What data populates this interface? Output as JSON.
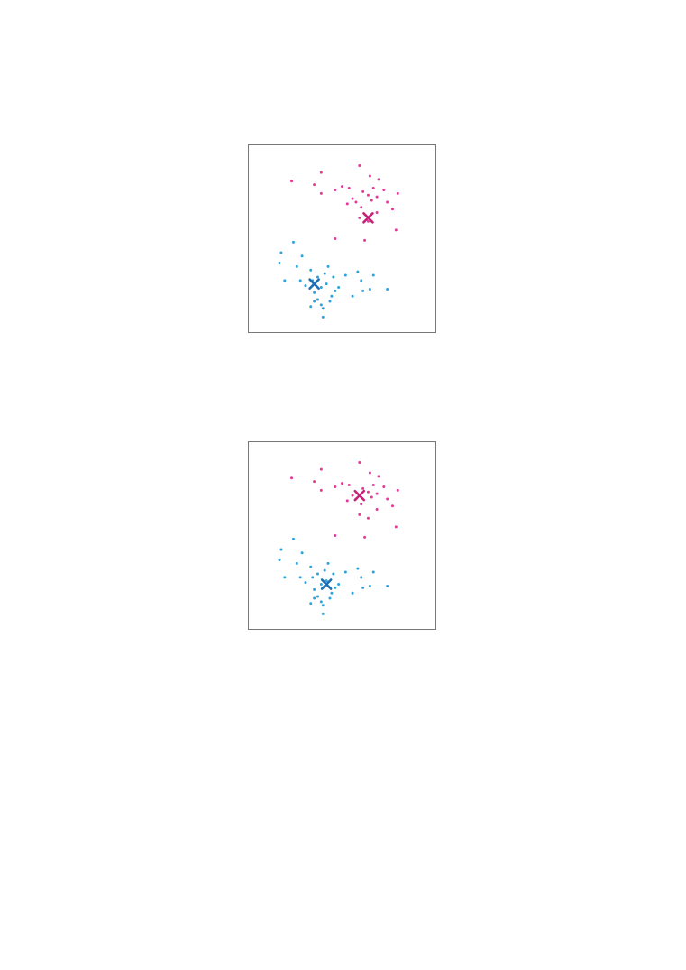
{
  "colors": {
    "cluster_a_points": "#e7389a",
    "cluster_b_points": "#2aa3df",
    "cluster_a_centroid": "#c71f79",
    "cluster_b_centroid": "#1f6fb4",
    "frame": "#777777"
  },
  "chart_data": [
    {
      "type": "scatter",
      "title": "",
      "xlabel": "",
      "ylabel": "",
      "xlim": [
        0,
        10
      ],
      "ylim": [
        0,
        10
      ],
      "grid": false,
      "series": [
        {
          "name": "cluster-a",
          "color_key": "cluster_a_points",
          "points": [
            [
              2.1,
              8.3
            ],
            [
              3.8,
              8.8
            ],
            [
              3.4,
              8.1
            ],
            [
              3.8,
              7.6
            ],
            [
              4.6,
              7.8
            ],
            [
              5.0,
              8.0
            ],
            [
              5.4,
              7.9
            ],
            [
              6.0,
              9.2
            ],
            [
              6.6,
              8.6
            ],
            [
              7.1,
              8.4
            ],
            [
              6.8,
              7.9
            ],
            [
              7.4,
              7.8
            ],
            [
              8.2,
              7.6
            ],
            [
              6.2,
              7.7
            ],
            [
              6.5,
              7.5
            ],
            [
              5.6,
              7.3
            ],
            [
              5.8,
              7.1
            ],
            [
              6.1,
              6.8
            ],
            [
              6.7,
              7.2
            ],
            [
              7.0,
              7.4
            ],
            [
              7.6,
              7.1
            ],
            [
              7.9,
              6.7
            ],
            [
              6.0,
              6.2
            ],
            [
              6.5,
              6.0
            ],
            [
              5.3,
              7.0
            ],
            [
              7.0,
              6.5
            ],
            [
              8.1,
              5.5
            ],
            [
              4.6,
              5.0
            ],
            [
              6.3,
              4.9
            ]
          ]
        },
        {
          "name": "cluster-b",
          "color_key": "cluster_b_points",
          "points": [
            [
              2.2,
              4.8
            ],
            [
              1.5,
              4.2
            ],
            [
              2.7,
              4.0
            ],
            [
              1.4,
              3.6
            ],
            [
              2.4,
              3.4
            ],
            [
              3.2,
              3.2
            ],
            [
              1.7,
              2.6
            ],
            [
              2.6,
              2.6
            ],
            [
              2.9,
              2.3
            ],
            [
              3.3,
              2.6
            ],
            [
              4.2,
              3.4
            ],
            [
              4.0,
              3.0
            ],
            [
              3.6,
              2.8
            ],
            [
              4.5,
              2.8
            ],
            [
              5.2,
              2.9
            ],
            [
              5.9,
              3.1
            ],
            [
              6.1,
              2.6
            ],
            [
              6.8,
              2.9
            ],
            [
              4.8,
              2.2
            ],
            [
              4.6,
              2.0
            ],
            [
              3.8,
              2.2
            ],
            [
              3.4,
              1.9
            ],
            [
              4.4,
              1.7
            ],
            [
              3.6,
              1.5
            ],
            [
              6.2,
              2.0
            ],
            [
              6.6,
              2.1
            ],
            [
              7.6,
              2.1
            ],
            [
              5.6,
              1.7
            ],
            [
              3.4,
              1.4
            ],
            [
              3.2,
              1.1
            ],
            [
              3.9,
              1.0
            ],
            [
              4.3,
              1.4
            ],
            [
              3.9,
              0.5
            ],
            [
              3.8,
              1.2
            ],
            [
              4.1,
              2.4
            ]
          ]
        }
      ],
      "centroids": [
        {
          "name": "centroid-a",
          "color_key": "cluster_a_centroid",
          "x": 6.5,
          "y": 6.2
        },
        {
          "name": "centroid-b",
          "color_key": "cluster_b_centroid",
          "x": 3.4,
          "y": 2.4
        }
      ]
    },
    {
      "type": "scatter",
      "title": "",
      "xlabel": "",
      "ylabel": "",
      "xlim": [
        0,
        10
      ],
      "ylim": [
        0,
        10
      ],
      "grid": false,
      "series": [
        {
          "name": "cluster-a",
          "color_key": "cluster_a_points",
          "points": [
            [
              2.1,
              8.3
            ],
            [
              3.8,
              8.8
            ],
            [
              3.4,
              8.1
            ],
            [
              3.8,
              7.6
            ],
            [
              4.6,
              7.8
            ],
            [
              5.0,
              8.0
            ],
            [
              5.4,
              7.9
            ],
            [
              6.0,
              9.2
            ],
            [
              6.6,
              8.6
            ],
            [
              7.1,
              8.4
            ],
            [
              6.8,
              7.9
            ],
            [
              7.4,
              7.8
            ],
            [
              8.2,
              7.6
            ],
            [
              6.2,
              7.7
            ],
            [
              6.5,
              7.5
            ],
            [
              5.6,
              7.3
            ],
            [
              5.8,
              7.1
            ],
            [
              6.1,
              6.8
            ],
            [
              6.7,
              7.2
            ],
            [
              7.0,
              7.4
            ],
            [
              7.6,
              7.1
            ],
            [
              7.9,
              6.7
            ],
            [
              6.0,
              6.2
            ],
            [
              6.5,
              6.0
            ],
            [
              5.3,
              7.0
            ],
            [
              7.0,
              6.5
            ],
            [
              8.1,
              5.5
            ],
            [
              4.6,
              5.0
            ],
            [
              6.3,
              4.9
            ]
          ]
        },
        {
          "name": "cluster-b",
          "color_key": "cluster_b_points",
          "points": [
            [
              2.2,
              4.8
            ],
            [
              1.5,
              4.2
            ],
            [
              2.7,
              4.0
            ],
            [
              1.4,
              3.6
            ],
            [
              2.4,
              3.4
            ],
            [
              3.2,
              3.2
            ],
            [
              1.7,
              2.6
            ],
            [
              2.6,
              2.6
            ],
            [
              2.9,
              2.3
            ],
            [
              3.3,
              2.6
            ],
            [
              4.2,
              3.4
            ],
            [
              4.0,
              3.0
            ],
            [
              3.6,
              2.8
            ],
            [
              4.5,
              2.8
            ],
            [
              5.2,
              2.9
            ],
            [
              5.9,
              3.1
            ],
            [
              6.1,
              2.6
            ],
            [
              6.8,
              2.9
            ],
            [
              4.8,
              2.2
            ],
            [
              4.6,
              2.0
            ],
            [
              3.8,
              2.2
            ],
            [
              3.4,
              1.9
            ],
            [
              4.4,
              1.7
            ],
            [
              3.6,
              1.5
            ],
            [
              6.2,
              2.0
            ],
            [
              6.6,
              2.1
            ],
            [
              7.6,
              2.1
            ],
            [
              5.6,
              1.7
            ],
            [
              3.4,
              1.4
            ],
            [
              3.2,
              1.1
            ],
            [
              3.9,
              1.0
            ],
            [
              4.3,
              1.4
            ],
            [
              3.9,
              0.5
            ],
            [
              3.8,
              1.2
            ],
            [
              4.1,
              2.4
            ]
          ]
        }
      ],
      "centroids": [
        {
          "name": "centroid-a",
          "color_key": "cluster_a_centroid",
          "x": 6.0,
          "y": 7.3
        },
        {
          "name": "centroid-b",
          "color_key": "cluster_b_centroid",
          "x": 4.1,
          "y": 2.2
        }
      ]
    }
  ]
}
